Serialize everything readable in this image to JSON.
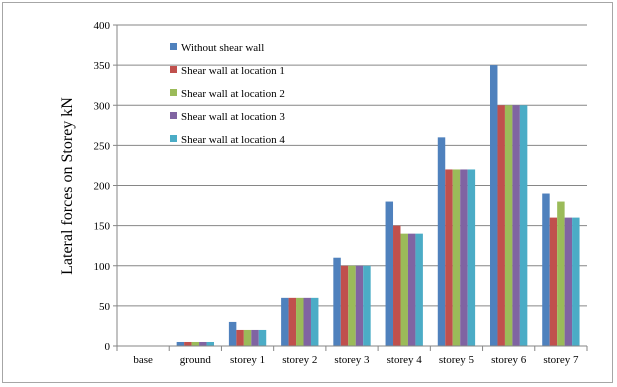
{
  "chart_data": {
    "type": "bar",
    "title": "",
    "xlabel": "",
    "ylabel": "Lateral forces on Storey  kN",
    "ylim": [
      0,
      400
    ],
    "yticks": [
      0,
      50,
      100,
      150,
      200,
      250,
      300,
      350,
      400
    ],
    "grid": "horizontal",
    "legend_position": "top-left",
    "categories": [
      "base",
      "ground",
      "storey 1",
      "storey 2",
      "storey 3",
      "storey 4",
      "storey 5",
      "storey 6",
      "storey 7"
    ],
    "series": [
      {
        "name": "Without shear wall",
        "color": "#4f81bd",
        "values": [
          0,
          5,
          30,
          60,
          110,
          180,
          260,
          350,
          190
        ]
      },
      {
        "name": "Shear wall at location 1",
        "color": "#c0504d",
        "values": [
          0,
          5,
          20,
          60,
          100,
          150,
          220,
          300,
          160
        ]
      },
      {
        "name": "Shear wall at location 2",
        "color": "#9bbb59",
        "values": [
          0,
          5,
          20,
          60,
          100,
          140,
          220,
          300,
          180
        ]
      },
      {
        "name": "Shear wall at location 3",
        "color": "#8064a2",
        "values": [
          0,
          5,
          20,
          60,
          100,
          140,
          220,
          300,
          160
        ]
      },
      {
        "name": "Shear wall at location 4",
        "color": "#4bacc6",
        "values": [
          0,
          5,
          20,
          60,
          100,
          140,
          220,
          300,
          160
        ]
      }
    ]
  }
}
